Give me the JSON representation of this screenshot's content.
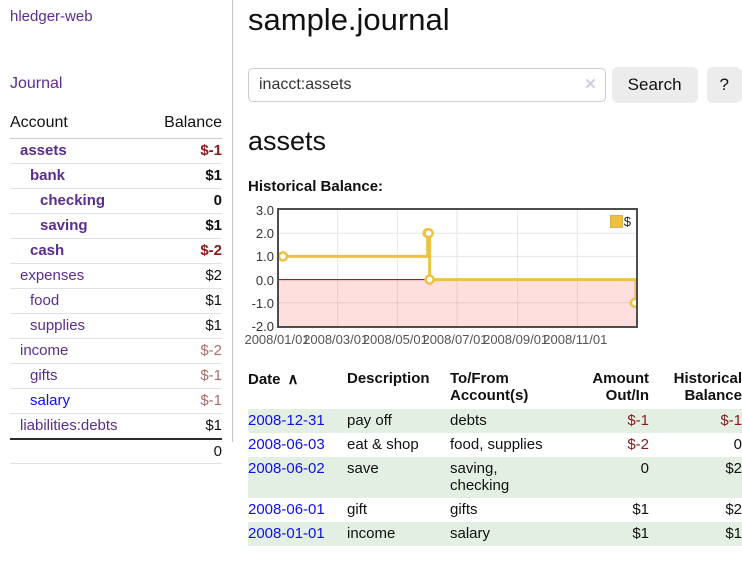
{
  "sidebar": {
    "app_title": "hledger-web",
    "journal_link": "Journal",
    "accounts": {
      "header": {
        "account": "Account",
        "balance": "Balance"
      },
      "rows": [
        {
          "name": "assets",
          "balance": "$-1",
          "indent": 1,
          "bold": true,
          "link": "purple"
        },
        {
          "name": "bank",
          "balance": "$1",
          "indent": 2,
          "bold": true,
          "link": "purple"
        },
        {
          "name": "checking",
          "balance": "0",
          "indent": 3,
          "bold": true,
          "link": "purple"
        },
        {
          "name": "saving",
          "balance": "$1",
          "indent": 3,
          "bold": true,
          "link": "purple"
        },
        {
          "name": "cash",
          "balance": "$-2",
          "indent": 2,
          "bold": true,
          "link": "purple"
        },
        {
          "name": "expenses",
          "balance": "$2",
          "indent": 1,
          "bold": false,
          "link": "purple"
        },
        {
          "name": "food",
          "balance": "$1",
          "indent": 2,
          "bold": false,
          "link": "purple"
        },
        {
          "name": "supplies",
          "balance": "$1",
          "indent": 2,
          "bold": false,
          "link": "purple"
        },
        {
          "name": "income",
          "balance": "$-2",
          "indent": 1,
          "bold": false,
          "link": "purple"
        },
        {
          "name": "gifts",
          "balance": "$-1",
          "indent": 2,
          "bold": false,
          "link": "purple"
        },
        {
          "name": "salary",
          "balance": "$-1",
          "indent": 2,
          "bold": false,
          "link": "blue"
        },
        {
          "name": "liabilities:debts",
          "balance": "$1",
          "indent": 1,
          "bold": false,
          "link": "purple"
        }
      ],
      "total": "0"
    }
  },
  "main": {
    "page_title": "sample.journal",
    "search": {
      "value": "inacct:assets",
      "clear_label": "✕",
      "button_label": "Search",
      "help_label": "?"
    },
    "account_heading": "assets",
    "chart_label": "Historical Balance:",
    "register": {
      "headers": {
        "date": "Date",
        "sort_indicator": "∧",
        "description": "Description",
        "account": "To/From Account(s)",
        "amount": "Amount Out/In",
        "balance": "Historical Balance"
      },
      "rows": [
        {
          "date": "2008-12-31",
          "description": "pay off",
          "account": "debts",
          "amount": "$-1",
          "balance": "$-1"
        },
        {
          "date": "2008-06-03",
          "description": "eat & shop",
          "account": "food, supplies",
          "amount": "$-2",
          "balance": "0"
        },
        {
          "date": "2008-06-02",
          "description": "save",
          "account": "saving, checking",
          "amount": "0",
          "balance": "$2"
        },
        {
          "date": "2008-06-01",
          "description": "gift",
          "account": "gifts",
          "amount": "$1",
          "balance": "$2"
        },
        {
          "date": "2008-01-01",
          "description": "income",
          "account": "salary",
          "amount": "$1",
          "balance": "$1"
        }
      ]
    }
  },
  "chart_data": {
    "type": "line",
    "title": "Historical Balance:",
    "step": true,
    "series": [
      {
        "name": "$",
        "color": "#edc240",
        "x": [
          "2008-01-01",
          "2008-06-01",
          "2008-06-02",
          "2008-06-03",
          "2008-12-31"
        ],
        "y": [
          1,
          2,
          2,
          0,
          -1
        ]
      }
    ],
    "xlim": [
      "2008-01-01",
      "2008-12-31"
    ],
    "ylim": [
      -2,
      3
    ],
    "yticks": [
      3.0,
      2.0,
      1.0,
      0.0,
      -1.0,
      -2.0
    ],
    "xticks": [
      "2008/01/01",
      "2008/03/01",
      "2008/05/01",
      "2008/07/01",
      "2008/09/01",
      "2008/11/01"
    ],
    "grid": true,
    "grid_color": "#e6e6e6",
    "zero_line_color": "#8b0000",
    "negative_fill": "rgba(255,0,0,0.13)",
    "legend": {
      "label": "$",
      "position": "top-right"
    }
  },
  "colors": {
    "accent_yellow": "#edc240",
    "negative_strong": "#8c1a1a",
    "negative_soft": "#b36b6b",
    "row_green": "#e3efe3",
    "link_blue": "#0f0fe8",
    "link_purple": "#5b2d91"
  }
}
